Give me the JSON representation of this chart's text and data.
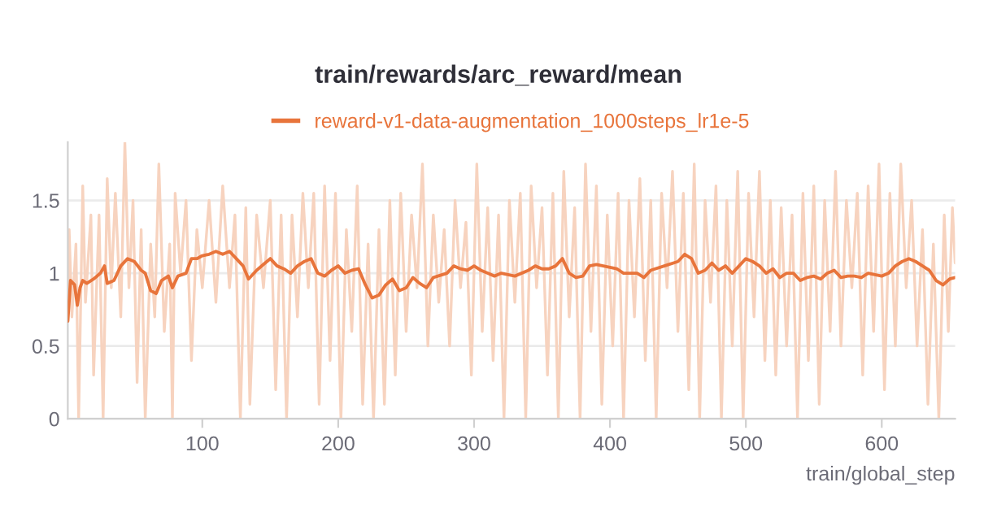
{
  "chart_data": {
    "type": "line",
    "title": "train/rewards/arc_reward/mean",
    "xlabel": "train/global_step",
    "xlim": [
      1,
      654
    ],
    "ylim": [
      0,
      1.9
    ],
    "xticks": [
      100,
      200,
      300,
      400,
      500,
      600
    ],
    "yticks": [
      0,
      0.5,
      1,
      1.5
    ],
    "grid": "y",
    "legend": "top",
    "line_style": "solid",
    "series": [
      {
        "color": "#f7d3bf",
        "x": [
          1,
          2,
          4,
          7,
          9,
          12,
          14,
          18,
          20,
          24,
          27,
          30,
          33,
          36,
          40,
          43,
          46,
          49,
          52,
          55,
          58,
          62,
          65,
          68,
          72,
          76,
          78,
          80,
          84,
          88,
          92,
          96,
          100,
          105,
          110,
          115,
          120,
          124,
          128,
          132,
          135,
          140,
          145,
          150,
          154,
          158,
          162,
          166,
          170,
          174,
          178,
          182,
          186,
          190,
          194,
          198,
          202,
          206,
          210,
          214,
          218,
          222,
          226,
          230,
          234,
          238,
          242,
          246,
          250,
          254,
          258,
          262,
          266,
          270,
          274,
          278,
          282,
          286,
          290,
          294,
          298,
          302,
          306,
          310,
          314,
          318,
          322,
          326,
          330,
          334,
          338,
          342,
          346,
          350,
          354,
          358,
          362,
          366,
          370,
          374,
          378,
          382,
          386,
          390,
          394,
          398,
          402,
          406,
          410,
          414,
          418,
          422,
          426,
          430,
          434,
          438,
          442,
          446,
          450,
          454,
          458,
          462,
          466,
          470,
          474,
          478,
          482,
          486,
          490,
          494,
          498,
          502,
          506,
          510,
          514,
          518,
          522,
          526,
          530,
          534,
          538,
          542,
          546,
          550,
          554,
          558,
          562,
          566,
          570,
          574,
          578,
          582,
          586,
          590,
          594,
          598,
          602,
          606,
          610,
          614,
          618,
          622,
          626,
          630,
          634,
          638,
          642,
          646,
          649,
          652,
          654
        ],
        "values": [
          0.67,
          1.3,
          0.7,
          1.2,
          0.0,
          1.6,
          0.8,
          1.4,
          0.3,
          1.4,
          0.0,
          1.65,
          0.9,
          1.55,
          0.7,
          1.9,
          0.9,
          1.5,
          0.25,
          1.3,
          0.0,
          1.2,
          0.7,
          1.75,
          0.6,
          1.2,
          0.0,
          1.55,
          1.0,
          1.5,
          0.4,
          1.3,
          0.9,
          1.5,
          0.8,
          1.6,
          0.9,
          1.4,
          0.0,
          1.45,
          0.1,
          1.4,
          0.9,
          1.5,
          0.2,
          1.4,
          0.0,
          1.4,
          0.7,
          1.55,
          0.9,
          1.55,
          0.1,
          1.6,
          0.4,
          1.55,
          0.0,
          1.3,
          0.6,
          1.6,
          0.1,
          1.2,
          0.0,
          1.3,
          0.1,
          1.5,
          0.3,
          1.55,
          0.6,
          1.4,
          0.9,
          1.75,
          0.5,
          1.4,
          0.8,
          1.3,
          0.5,
          1.5,
          0.9,
          1.35,
          0.3,
          1.75,
          0.6,
          1.45,
          0.4,
          1.4,
          0.0,
          1.5,
          0.8,
          1.55,
          0.0,
          1.6,
          0.9,
          1.45,
          0.3,
          1.55,
          0.0,
          1.7,
          0.7,
          1.45,
          0.0,
          1.75,
          0.6,
          1.6,
          0.1,
          1.4,
          0.5,
          1.55,
          0.0,
          1.5,
          0.7,
          1.65,
          0.4,
          1.5,
          0.0,
          1.55,
          0.9,
          1.7,
          0.6,
          1.55,
          0.2,
          1.75,
          0.0,
          1.5,
          0.8,
          1.6,
          0.0,
          1.5,
          0.5,
          1.7,
          0.0,
          1.55,
          0.7,
          1.7,
          0.4,
          1.5,
          0.3,
          1.45,
          0.5,
          1.4,
          0.0,
          1.55,
          0.4,
          1.6,
          0.1,
          1.5,
          0.6,
          1.7,
          0.5,
          1.5,
          0.9,
          1.55,
          0.3,
          1.6,
          0.6,
          1.75,
          0.2,
          1.55,
          0.5,
          1.75,
          0.9,
          1.5,
          0.5,
          1.3,
          0.1,
          1.2,
          0.0,
          1.4,
          0.6,
          1.45,
          1.07
        ]
      },
      {
        "name": "reward-v1-data-augmentation_1000steps_lr1e-5",
        "color": "#e8743b",
        "x": [
          1,
          3,
          6,
          8,
          10,
          12,
          15,
          20,
          25,
          28,
          30,
          35,
          40,
          45,
          50,
          55,
          58,
          62,
          66,
          70,
          75,
          78,
          82,
          88,
          92,
          96,
          100,
          105,
          110,
          115,
          120,
          125,
          130,
          134,
          140,
          145,
          150,
          155,
          160,
          165,
          170,
          175,
          180,
          185,
          190,
          195,
          200,
          205,
          210,
          215,
          220,
          225,
          230,
          235,
          240,
          245,
          250,
          255,
          260,
          265,
          270,
          280,
          285,
          290,
          295,
          300,
          305,
          310,
          315,
          320,
          330,
          340,
          345,
          350,
          355,
          360,
          365,
          370,
          375,
          380,
          385,
          390,
          400,
          405,
          410,
          420,
          425,
          430,
          440,
          450,
          455,
          460,
          465,
          470,
          475,
          480,
          485,
          490,
          495,
          500,
          505,
          510,
          515,
          520,
          525,
          530,
          535,
          540,
          545,
          550,
          555,
          560,
          565,
          570,
          575,
          580,
          585,
          590,
          600,
          605,
          610,
          615,
          620,
          625,
          630,
          635,
          640,
          645,
          650,
          654
        ],
        "values": [
          0.67,
          0.95,
          0.92,
          0.78,
          0.9,
          0.95,
          0.93,
          0.96,
          1.0,
          1.05,
          0.93,
          0.95,
          1.05,
          1.1,
          1.08,
          1.02,
          1.0,
          0.88,
          0.86,
          0.95,
          0.98,
          0.9,
          0.98,
          1.0,
          1.1,
          1.1,
          1.12,
          1.13,
          1.15,
          1.13,
          1.15,
          1.1,
          1.05,
          0.96,
          1.02,
          1.06,
          1.1,
          1.05,
          1.03,
          1.0,
          1.05,
          1.08,
          1.1,
          1.0,
          0.98,
          1.02,
          1.05,
          1.0,
          1.02,
          1.03,
          0.92,
          0.83,
          0.85,
          0.92,
          0.96,
          0.88,
          0.9,
          0.97,
          0.93,
          0.9,
          0.97,
          1.0,
          1.05,
          1.03,
          1.02,
          1.05,
          1.02,
          1.0,
          0.98,
          1.0,
          0.98,
          1.02,
          1.05,
          1.03,
          1.03,
          1.05,
          1.1,
          1.0,
          0.97,
          0.98,
          1.05,
          1.06,
          1.04,
          1.03,
          1.0,
          1.0,
          0.97,
          1.02,
          1.05,
          1.08,
          1.13,
          1.1,
          1.0,
          1.02,
          1.07,
          1.02,
          1.05,
          1.0,
          1.05,
          1.1,
          1.08,
          1.05,
          1.0,
          1.03,
          0.97,
          1.0,
          1.0,
          0.95,
          0.97,
          0.98,
          0.96,
          1.0,
          1.02,
          0.97,
          0.98,
          0.98,
          0.97,
          1.0,
          0.98,
          1.0,
          1.05,
          1.08,
          1.1,
          1.08,
          1.05,
          1.02,
          0.95,
          0.92,
          0.96,
          0.97
        ]
      }
    ]
  }
}
